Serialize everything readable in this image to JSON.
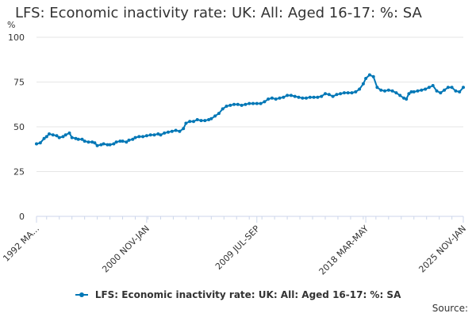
{
  "page": {
    "title": "LFS: Economic inactivity rate: UK: All: Aged 16-17: %: SA",
    "source_label": "Source:"
  },
  "chart_data": {
    "type": "line",
    "title": "LFS: Economic inactivity rate: UK: All: Aged 16-17: %: SA",
    "xlabel": "",
    "ylabel": "%",
    "ylim": [
      0,
      100
    ],
    "yticks": [
      "0",
      "25",
      "50",
      "75",
      "100"
    ],
    "x_tick_labels": [
      "1992 MA...",
      "2000 NOV-JAN",
      "2009 JUL-SEP",
      "2018 MAR-MAY",
      "2025 NOV-JAN"
    ],
    "x_tick_positions_year": [
      1992.2,
      2000.9,
      2009.6,
      2018.2,
      2025.9
    ],
    "grid": true,
    "legend": "bottom-center",
    "series_color": "#0077b6",
    "series": [
      {
        "name": "LFS: Economic inactivity rate: UK: All: Aged 16-17: %: SA",
        "x": [
          1992.2,
          1992.5,
          1992.8,
          1993.0,
          1993.2,
          1993.5,
          1993.8,
          1994.0,
          1994.3,
          1994.5,
          1994.8,
          1995.0,
          1995.3,
          1995.5,
          1995.8,
          1996.0,
          1996.3,
          1996.6,
          1996.8,
          1997.0,
          1997.3,
          1997.5,
          1997.8,
          1998.0,
          1998.3,
          1998.5,
          1998.8,
          1999.0,
          1999.3,
          1999.5,
          1999.8,
          2000.0,
          2000.3,
          2000.6,
          2000.9,
          2001.2,
          2001.5,
          2001.8,
          2002.0,
          2002.3,
          2002.6,
          2002.9,
          2003.2,
          2003.5,
          2003.8,
          2004.0,
          2004.3,
          2004.6,
          2004.9,
          2005.2,
          2005.5,
          2005.8,
          2006.0,
          2006.3,
          2006.6,
          2006.9,
          2007.2,
          2007.5,
          2007.8,
          2008.1,
          2008.4,
          2008.7,
          2009.0,
          2009.3,
          2009.6,
          2009.9,
          2010.2,
          2010.5,
          2010.8,
          2011.1,
          2011.4,
          2011.7,
          2012.0,
          2012.3,
          2012.6,
          2012.9,
          2013.2,
          2013.5,
          2013.8,
          2014.1,
          2014.4,
          2014.7,
          2015.0,
          2015.3,
          2015.6,
          2015.9,
          2016.2,
          2016.5,
          2016.8,
          2017.1,
          2017.4,
          2017.7,
          2018.0,
          2018.2,
          2018.5,
          2018.8,
          2019.1,
          2019.4,
          2019.7,
          2020.0,
          2020.3,
          2020.6,
          2020.9,
          2021.2,
          2021.4,
          2021.6,
          2021.8,
          2022.0,
          2022.3,
          2022.6,
          2022.9,
          2023.2,
          2023.5,
          2023.8,
          2024.1,
          2024.4,
          2024.7,
          2025.0,
          2025.3,
          2025.6,
          2025.9
        ],
        "values": [
          40.5,
          41,
          43.5,
          44.5,
          46,
          45.5,
          45,
          44,
          44.5,
          45.5,
          46.5,
          44,
          43.5,
          43,
          43,
          42,
          41.5,
          41.5,
          41,
          39.5,
          40,
          40.5,
          40,
          40,
          40.5,
          41.5,
          42,
          42,
          41.5,
          42.5,
          43,
          44,
          44.5,
          44.5,
          45,
          45.5,
          45.5,
          46,
          45.5,
          46.5,
          47,
          47.5,
          48,
          47.5,
          49,
          52,
          53,
          53,
          54,
          53.5,
          53.5,
          54,
          54.5,
          56,
          57.5,
          60,
          61.5,
          62,
          62.5,
          62.5,
          62,
          62.5,
          63,
          63,
          63,
          63,
          64,
          65.5,
          66,
          65.5,
          66,
          66.5,
          67.5,
          67.5,
          67,
          66.5,
          66,
          66,
          66.5,
          66.5,
          66.5,
          67,
          68.5,
          68,
          67,
          68,
          68.5,
          69,
          69,
          69,
          69.5,
          71,
          74,
          77,
          79,
          78,
          72,
          70.5,
          70,
          70.5,
          70,
          69,
          67.5,
          66,
          65.5,
          68.5,
          69.5,
          69.5,
          70,
          70.5,
          71,
          72,
          73,
          70,
          69,
          70.5,
          72,
          72,
          70,
          69.5,
          72
        ]
      }
    ]
  }
}
